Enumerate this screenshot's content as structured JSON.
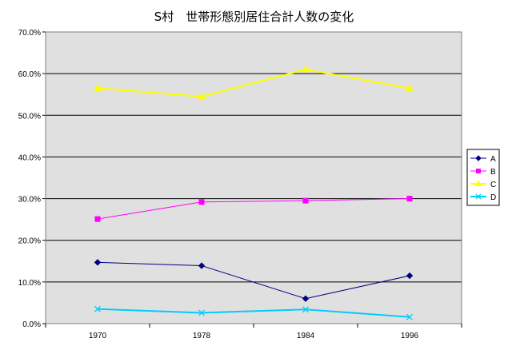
{
  "chart_data": {
    "type": "line",
    "title": "S村　世帯形態別居住合計人数の変化",
    "xlabel": "",
    "ylabel": "",
    "categories": [
      "1970",
      "1978",
      "1984",
      "1996"
    ],
    "ylim": [
      0,
      0.7
    ],
    "yticks": [
      0,
      0.1,
      0.2,
      0.3,
      0.4,
      0.5,
      0.6,
      0.7
    ],
    "ytick_labels": [
      "0.0%",
      "10.0%",
      "20.0%",
      "30.0%",
      "40.0%",
      "50.0%",
      "60.0%",
      "70.0%"
    ],
    "grid": true,
    "legend_position": "right",
    "series": [
      {
        "name": "A",
        "values": [
          0.147,
          0.139,
          0.06,
          0.115
        ],
        "color": "#000080",
        "marker": "diamond"
      },
      {
        "name": "B",
        "values": [
          0.251,
          0.292,
          0.295,
          0.3
        ],
        "color": "#ff00ff",
        "marker": "square"
      },
      {
        "name": "C",
        "values": [
          0.565,
          0.545,
          0.61,
          0.565
        ],
        "color": "#ffff00",
        "marker": "triangle"
      },
      {
        "name": "D",
        "values": [
          0.035,
          0.026,
          0.034,
          0.016
        ],
        "color": "#00ccff",
        "marker": "x"
      }
    ]
  }
}
